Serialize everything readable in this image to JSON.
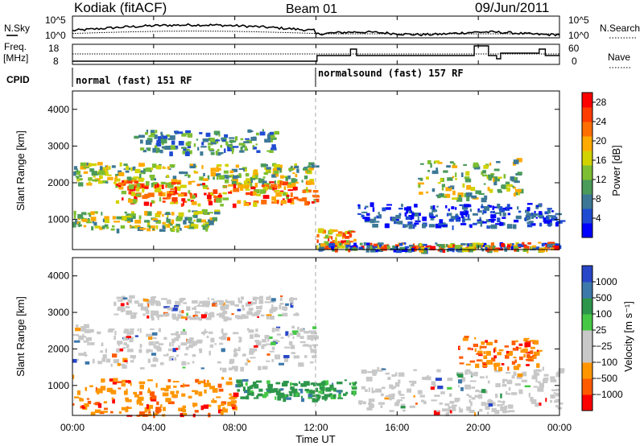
{
  "header": {
    "station": "Kodiak (fitACF)",
    "beam": "Beam 01",
    "date": "09/Jun/2011"
  },
  "noise_panel": {
    "left_label": "N.Sky",
    "right_label": "N.Search",
    "y_top_left": "10^5",
    "y_bot_left": "10^0",
    "y_top_right": "10^5",
    "y_bot_right": "10^0"
  },
  "freq_panel": {
    "left_label_1": "Freq.",
    "left_label_2": "[MHz]",
    "right_label": "Nave",
    "y_top_left": "18",
    "y_bot_left": "8",
    "y_top_right": "60",
    "y_bot_right": "0"
  },
  "cpid_panel": {
    "label": "CPID",
    "modes": [
      {
        "name": "normal (fast) 151 RF",
        "start_hour": 0
      },
      {
        "name": "normalsound (fast) 157 RF",
        "start_hour": 12
      }
    ]
  },
  "x_axis": {
    "label": "Time UT",
    "ticks": [
      "00:00",
      "04:00",
      "08:00",
      "12:00",
      "16:00",
      "20:00",
      "00:00"
    ]
  },
  "colors": {
    "power_scale": [
      "#0000ff",
      "#1e4bd2",
      "#3c7896",
      "#4b9b5a",
      "#7dbe32",
      "#d2d200",
      "#ffaa00",
      "#ff6e00",
      "#ff3c00",
      "#ff0000"
    ],
    "velocity_scale": [
      "#ff0000",
      "#ff5a00",
      "#ff9600",
      "#c8c8c8",
      "#c8c8c8",
      "#46c846",
      "#2d964b",
      "#3c78aa",
      "#2846c8"
    ]
  },
  "chart_data": [
    {
      "type": "heatmap",
      "title": "",
      "xlabel": "",
      "ylabel": "Slant Range [km]",
      "xlim": [
        0,
        24
      ],
      "ylim": [
        180,
        4500
      ],
      "y_ticks": [
        "1000",
        "2000",
        "3000",
        "4000"
      ],
      "colorbar": {
        "label": "Power [dB]",
        "ticks": [
          "4",
          "8",
          "12",
          "16",
          "20",
          "24",
          "28"
        ],
        "range": [
          0,
          30
        ]
      },
      "features": [
        {
          "hours": [
            0,
            12
          ],
          "range_km": [
            2000,
            2600
          ],
          "level": "moderate"
        },
        {
          "hours": [
            2,
            12
          ],
          "range_km": [
            1500,
            2100
          ],
          "level": "strong"
        },
        {
          "hours": [
            3,
            10
          ],
          "range_km": [
            2900,
            3500
          ],
          "level": "weak-moderate"
        },
        {
          "hours": [
            0,
            7
          ],
          "range_km": [
            800,
            1300
          ],
          "level": "moderate"
        },
        {
          "hours": [
            12,
            14
          ],
          "range_km": [
            400,
            800
          ],
          "level": "strong"
        },
        {
          "hours": [
            14,
            24
          ],
          "range_km": [
            900,
            1500
          ],
          "level": "weak"
        },
        {
          "hours": [
            17,
            22
          ],
          "range_km": [
            1700,
            2700
          ],
          "level": "moderate"
        },
        {
          "hours": [
            12,
            24
          ],
          "range_km": [
            200,
            400
          ],
          "level": "mixed"
        }
      ]
    },
    {
      "type": "heatmap",
      "title": "",
      "xlabel": "Time UT",
      "ylabel": "Slant Range [km]",
      "xlim": [
        0,
        24
      ],
      "ylim": [
        180,
        4500
      ],
      "y_ticks": [
        "1000",
        "2000",
        "3000",
        "4000"
      ],
      "colorbar": {
        "label": "Velocity [m s⁻¹]",
        "ticks": [
          "1000",
          "500",
          "100",
          "25",
          "−25",
          "−100",
          "−500",
          "−1000"
        ],
        "range": [
          -1000,
          1000
        ]
      },
      "features": [
        {
          "hours": [
            0,
            12
          ],
          "range_km": [
            1600,
            2700
          ],
          "velocity": "near zero (ground scatter)"
        },
        {
          "hours": [
            2,
            11
          ],
          "range_km": [
            2900,
            3500
          ],
          "velocity": "near zero"
        },
        {
          "hours": [
            0,
            8
          ],
          "range_km": [
            300,
            1300
          ],
          "velocity": "-100 to -500"
        },
        {
          "hours": [
            8,
            14
          ],
          "range_km": [
            700,
            1200
          ],
          "velocity": "100 to 500"
        },
        {
          "hours": [
            14,
            24
          ],
          "range_km": [
            400,
            1600
          ],
          "velocity": "near zero"
        },
        {
          "hours": [
            19,
            23
          ],
          "range_km": [
            1600,
            2400
          ],
          "velocity": "-100 to -500"
        }
      ]
    }
  ]
}
